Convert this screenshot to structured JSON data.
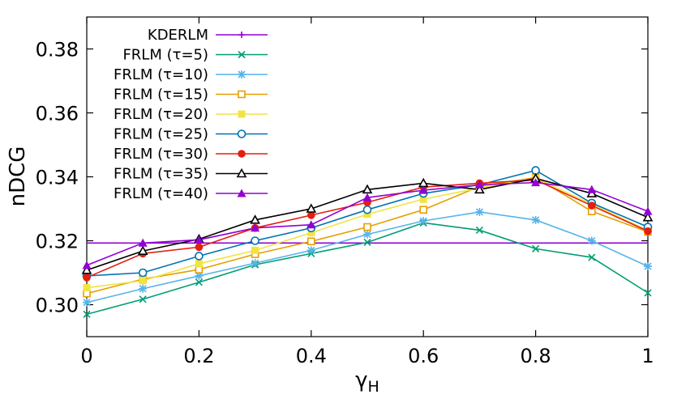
{
  "chart_data": {
    "type": "line",
    "xlabel_main": "γ",
    "xlabel_sub": "H",
    "ylabel": "nDCG",
    "xlim": [
      0,
      1
    ],
    "ylim": [
      0.29,
      0.39
    ],
    "x_ticks": [
      0,
      0.2,
      0.4,
      0.6,
      0.8,
      1
    ],
    "x_tick_labels": [
      "0",
      "0.2",
      "0.4",
      "0.6",
      "0.8",
      "1"
    ],
    "y_ticks": [
      0.3,
      0.32,
      0.34,
      0.36,
      0.38
    ],
    "y_tick_labels": [
      "0.30",
      "0.32",
      "0.34",
      "0.36",
      "0.38"
    ],
    "legend_position": "top-left",
    "x": [
      0,
      0.1,
      0.2,
      0.3,
      0.4,
      0.5,
      0.6,
      0.7,
      0.8,
      0.9,
      1.0
    ],
    "series": [
      {
        "name": "KDERLM",
        "color": "#9400d3",
        "marker": "plus",
        "constant": 0.3193
      },
      {
        "name": "FRLM (τ=5)",
        "color": "#009e73",
        "marker": "cross",
        "values": [
          0.297,
          0.3017,
          0.307,
          0.3125,
          0.316,
          0.3195,
          0.3256,
          0.3233,
          0.3175,
          0.3148,
          0.3037
        ]
      },
      {
        "name": "FRLM (τ=10)",
        "color": "#56b4e9",
        "marker": "star",
        "values": [
          0.3007,
          0.305,
          0.309,
          0.313,
          0.317,
          0.322,
          0.3262,
          0.329,
          0.3265,
          0.32,
          0.312
        ]
      },
      {
        "name": "FRLM (τ=15)",
        "color": "#e69f00",
        "marker": "open-square",
        "values": [
          0.3035,
          0.308,
          0.311,
          0.3158,
          0.3198,
          0.3243,
          0.3297,
          0.337,
          0.3398,
          0.3292,
          0.3228
        ]
      },
      {
        "name": "FRLM (τ=20)",
        "color": "#f0e442",
        "marker": "filled-square",
        "values": [
          0.3053,
          0.3075,
          0.3128,
          0.317,
          0.3225,
          0.3283,
          0.333,
          0.3365,
          0.3395,
          0.3315,
          0.3232
        ]
      },
      {
        "name": "FRLM (τ=25)",
        "color": "#0072b2",
        "marker": "open-circle",
        "values": [
          0.309,
          0.31,
          0.3152,
          0.32,
          0.324,
          0.3297,
          0.3348,
          0.3375,
          0.342,
          0.3318,
          0.3243
        ]
      },
      {
        "name": "FRLM (τ=30)",
        "color": "#e51e10",
        "marker": "filled-circle",
        "values": [
          0.3085,
          0.316,
          0.318,
          0.324,
          0.328,
          0.332,
          0.3368,
          0.338,
          0.339,
          0.331,
          0.323
        ]
      },
      {
        "name": "FRLM (τ=35)",
        "color": "#000000",
        "marker": "open-triangle",
        "values": [
          0.3108,
          0.3168,
          0.3205,
          0.3265,
          0.33,
          0.336,
          0.338,
          0.336,
          0.3395,
          0.3348,
          0.3273
        ]
      },
      {
        "name": "FRLM (τ=40)",
        "color": "#9400d3",
        "marker": "filled-triangle",
        "values": [
          0.3123,
          0.3193,
          0.3203,
          0.324,
          0.325,
          0.3335,
          0.3358,
          0.3375,
          0.3382,
          0.336,
          0.3292
        ]
      }
    ]
  }
}
